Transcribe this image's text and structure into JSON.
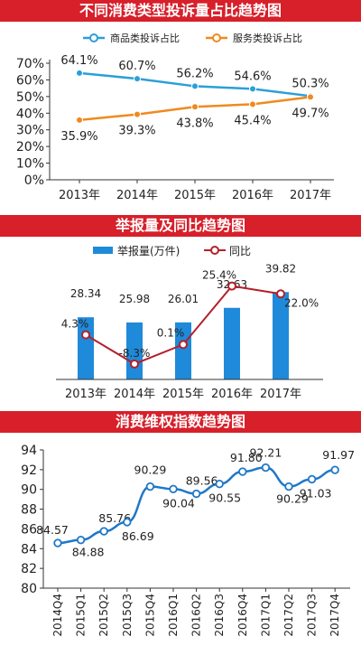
{
  "charts": [
    {
      "banner_title": "不同消费类型投诉量占比趋势图",
      "chart_data": {
        "type": "line",
        "categories": [
          "2013年",
          "2014年",
          "2015年",
          "2016年",
          "2017年"
        ],
        "series": [
          {
            "name": "商品类投诉占比",
            "color": "#2b9fd8",
            "values": [
              64.1,
              60.7,
              56.2,
              54.6,
              50.3
            ]
          },
          {
            "name": "服务类投诉占比",
            "color": "#ef8a1f",
            "values": [
              35.9,
              39.3,
              43.8,
              45.4,
              49.7
            ]
          }
        ],
        "data_labels": [
          [
            "64.1%",
            "60.7%",
            "56.2%",
            "54.6%",
            "50.3%"
          ],
          [
            "35.9%",
            "39.3%",
            "43.8%",
            "45.4%",
            "49.7%"
          ]
        ],
        "ylim": [
          0,
          70
        ],
        "yticks": [
          0,
          10,
          20,
          30,
          40,
          50,
          60,
          70
        ],
        "ytick_labels": [
          "0%",
          "10%",
          "20%",
          "30%",
          "40%",
          "50%",
          "60%",
          "70%"
        ],
        "legend": "top",
        "grid": false
      }
    },
    {
      "banner_title": "举报量及同比趋势图",
      "chart_data": {
        "type": "bar",
        "categories": [
          "2013年",
          "2014年",
          "2015年",
          "2016年",
          "2017年"
        ],
        "series": [
          {
            "name": "举报量(万件)",
            "color": "#1f8ad9",
            "values": [
              28.34,
              25.98,
              26.01,
              32.63,
              39.82
            ]
          },
          {
            "name": "同比",
            "color": "#b3202a",
            "values": [
              4.3,
              -8.3,
              0.1,
              25.4,
              22.0
            ]
          }
        ],
        "data_labels": [
          [
            "28.34",
            "25.98",
            "26.01",
            "32.63",
            "39.82"
          ],
          [
            "4.3%",
            "-8.3%",
            "0.1%",
            "25.4%",
            "22.0%"
          ]
        ],
        "ylim": [
          0,
          42
        ],
        "y2lim": [
          -15,
          35
        ],
        "legend": "top",
        "grid": false
      }
    },
    {
      "banner_title": "消费维权指数趋势图",
      "chart_data": {
        "type": "line",
        "categories": [
          "2014Q4",
          "2015Q1",
          "2015Q2",
          "2015Q3",
          "2015Q4",
          "2016Q1",
          "2016Q2",
          "2016Q3",
          "2016Q4",
          "2017Q1",
          "2017Q2",
          "2017Q3",
          "2017Q4"
        ],
        "series": [
          {
            "color": "#1f78c8",
            "values": [
              84.57,
              84.88,
              85.76,
              86.69,
              90.29,
              90.04,
              89.56,
              90.55,
              91.8,
              92.21,
              90.29,
              91.03,
              91.97
            ]
          }
        ],
        "data_labels": [
          [
            "84.57",
            "84.88",
            "85.76",
            "86.69",
            "90.29",
            "90.04",
            "89.56",
            "90.55",
            "91.80",
            "92.21",
            "90.29",
            "91.03",
            "91.97"
          ]
        ],
        "ylim": [
          80,
          94
        ],
        "yticks": [
          80,
          82,
          84,
          86,
          88,
          90,
          92,
          94
        ],
        "grid": false
      }
    }
  ]
}
